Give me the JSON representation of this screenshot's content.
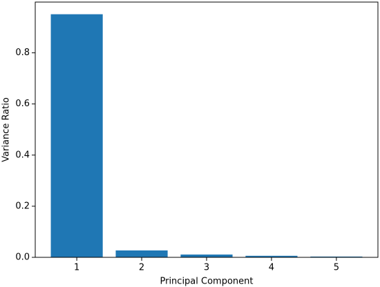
{
  "chart_data": {
    "type": "bar",
    "x": [
      1,
      2,
      3,
      4,
      5
    ],
    "values": [
      0.951,
      0.027,
      0.011,
      0.006,
      0.003
    ],
    "color": "#1f77b4",
    "xlabel": "Principal Component",
    "ylabel": "Variance Ratio",
    "xlim": [
      0.36,
      5.64
    ],
    "xticks": [
      1,
      2,
      3,
      4,
      5
    ],
    "ylim": [
      0,
      0.9986
    ],
    "yticks": [
      {
        "value": 0,
        "label": "0.0"
      },
      0.2,
      0.4,
      0.6,
      0.8
    ],
    "grid": false
  }
}
